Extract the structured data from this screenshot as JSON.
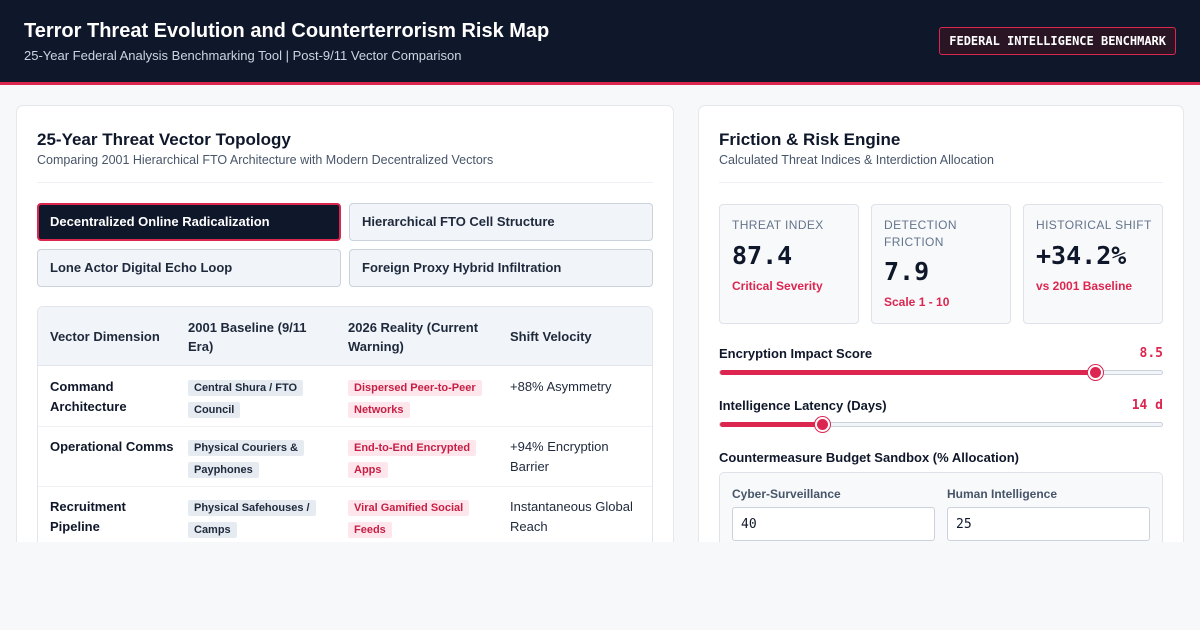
{
  "header": {
    "title": "Terror Threat Evolution and Counterterrorism Risk Map",
    "subtitle": "25-Year Federal Analysis Benchmarking Tool | Post-9/11 Vector Comparison",
    "badge": "FEDERAL INTELLIGENCE BENCHMARK"
  },
  "topology": {
    "title": "25-Year Threat Vector Topology",
    "subtitle": "Comparing 2001 Hierarchical FTO Architecture with Modern Decentralized Vectors",
    "vector_buttons": [
      {
        "label": "Decentralized Online Radicalization",
        "active": true
      },
      {
        "label": "Hierarchical FTO Cell Structure",
        "active": false
      },
      {
        "label": "Lone Actor Digital Echo Loop",
        "active": false
      },
      {
        "label": "Foreign Proxy Hybrid Infiltration",
        "active": false
      }
    ],
    "table": {
      "headers": [
        "Vector Dimension",
        "2001 Baseline (9/11 Era)",
        "2026 Reality (Current Warning)",
        "Shift Velocity"
      ],
      "rows": [
        {
          "dimension": "Command Architecture",
          "baseline": "Central Shura / FTO Council",
          "reality": "Dispersed Peer-to-Peer Networks",
          "velocity": "+88% Asymmetry"
        },
        {
          "dimension": "Operational Comms",
          "baseline": "Physical Couriers & Payphones",
          "reality": "End-to-End Encrypted Apps",
          "velocity": "+94% Encryption Barrier"
        },
        {
          "dimension": "Recruitment Pipeline",
          "baseline": "Physical Safehouses / Camps",
          "reality": "Viral Gamified Social Feeds",
          "velocity": "Instantaneous Global Reach"
        }
      ]
    }
  },
  "engine": {
    "title": "Friction & Risk Engine",
    "subtitle": "Calculated Threat Indices & Interdiction Allocation",
    "stats": [
      {
        "label": "THREAT INDEX",
        "value": "87.4",
        "note": "Critical Severity"
      },
      {
        "label": "DETECTION FRICTION",
        "value": "7.9",
        "note": "Scale 1 - 10"
      },
      {
        "label": "HISTORICAL SHIFT",
        "value": "+34.2%",
        "note": "vs 2001 Baseline"
      }
    ],
    "sliders": [
      {
        "label": "Encryption Impact Score",
        "display": "8.5",
        "value": 8.5,
        "min": 0,
        "max": 10
      },
      {
        "label": "Intelligence Latency (Days)",
        "display": "14 d",
        "value": 14,
        "min": 0,
        "max": 60
      }
    ],
    "budget": {
      "title": "Countermeasure Budget Sandbox (% Allocation)",
      "fields": [
        {
          "label": "Cyber-Surveillance",
          "value": "40"
        },
        {
          "label": "Human Intelligence",
          "value": "25"
        }
      ]
    }
  },
  "colors": {
    "navy": "#0f172a",
    "accent": "#dc2650",
    "muted": "#475569"
  }
}
